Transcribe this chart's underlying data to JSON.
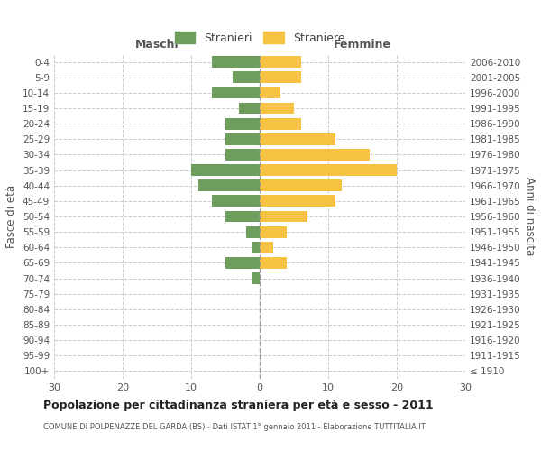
{
  "age_groups": [
    "100+",
    "95-99",
    "90-94",
    "85-89",
    "80-84",
    "75-79",
    "70-74",
    "65-69",
    "60-64",
    "55-59",
    "50-54",
    "45-49",
    "40-44",
    "35-39",
    "30-34",
    "25-29",
    "20-24",
    "15-19",
    "10-14",
    "5-9",
    "0-4"
  ],
  "birth_years": [
    "≤ 1910",
    "1911-1915",
    "1916-1920",
    "1921-1925",
    "1926-1930",
    "1931-1935",
    "1936-1940",
    "1941-1945",
    "1946-1950",
    "1951-1955",
    "1956-1960",
    "1961-1965",
    "1966-1970",
    "1971-1975",
    "1976-1980",
    "1981-1985",
    "1986-1990",
    "1991-1995",
    "1996-2000",
    "2001-2005",
    "2006-2010"
  ],
  "males": [
    0,
    0,
    0,
    0,
    0,
    0,
    1,
    5,
    1,
    2,
    5,
    7,
    9,
    10,
    5,
    5,
    5,
    3,
    7,
    4,
    7
  ],
  "females": [
    0,
    0,
    0,
    0,
    0,
    0,
    0,
    4,
    2,
    4,
    7,
    11,
    12,
    20,
    16,
    11,
    6,
    5,
    3,
    6,
    6
  ],
  "male_color": "#6d9e5e",
  "female_color": "#f5c242",
  "grid_color": "#cccccc",
  "title": "Popolazione per cittadinanza straniera per età e sesso - 2011",
  "subtitle": "COMUNE DI POLPENAZZE DEL GARDA (BS) - Dati ISTAT 1° gennaio 2011 - Elaborazione TUTTITALIA.IT",
  "xlabel_left": "Maschi",
  "xlabel_right": "Femmine",
  "ylabel_left": "Fasce di età",
  "ylabel_right": "Anni di nascita",
  "legend_male": "Stranieri",
  "legend_female": "Straniere",
  "xlim": 30,
  "bar_height": 0.75
}
